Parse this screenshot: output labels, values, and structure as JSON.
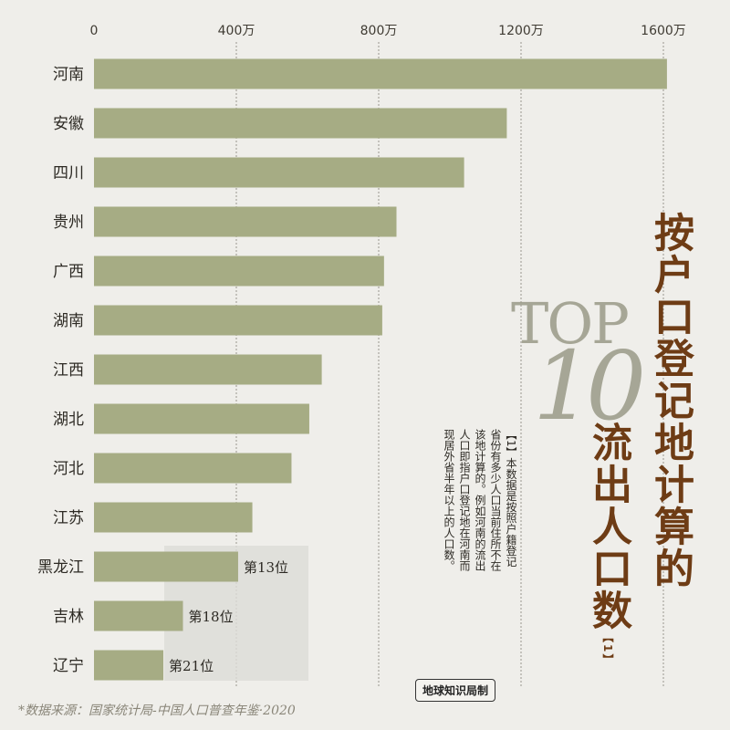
{
  "chart_data": {
    "type": "bar",
    "orientation": "horizontal",
    "categories": [
      "河南",
      "安徽",
      "四川",
      "贵州",
      "广西",
      "湖南",
      "江西",
      "湖北",
      "河北",
      "江苏",
      "黑龙江",
      "吉林",
      "辽宁"
    ],
    "values": [
      1610,
      1160,
      1040,
      850,
      815,
      810,
      640,
      605,
      555,
      445,
      405,
      250,
      195
    ],
    "rank_labels": [
      "",
      "",
      "",
      "",
      "",
      "",
      "",
      "",
      "",
      "",
      "第13位",
      "第18位",
      "第21位"
    ],
    "xticks": [
      "0",
      "400万",
      "800万",
      "1200万",
      "1600万"
    ],
    "xlim": [
      0,
      1600
    ],
    "grid": true,
    "bar_color": "#a6ac84"
  },
  "title": {
    "line1": "按户口登记地计算的",
    "line2": "流出人口数",
    "superscript": "【1】",
    "top_word": "TOP",
    "top_number": "10"
  },
  "note": "【1】本数据是按照户籍登记省份有多少人口当前住所不在该地计算的。例如河南的流出人口即指户口登记地在河南而现居外省半年以上的人口数。",
  "producer": "地球知识局制",
  "source": "*数据来源：国家统计局-中国人口普查年鉴·2020"
}
